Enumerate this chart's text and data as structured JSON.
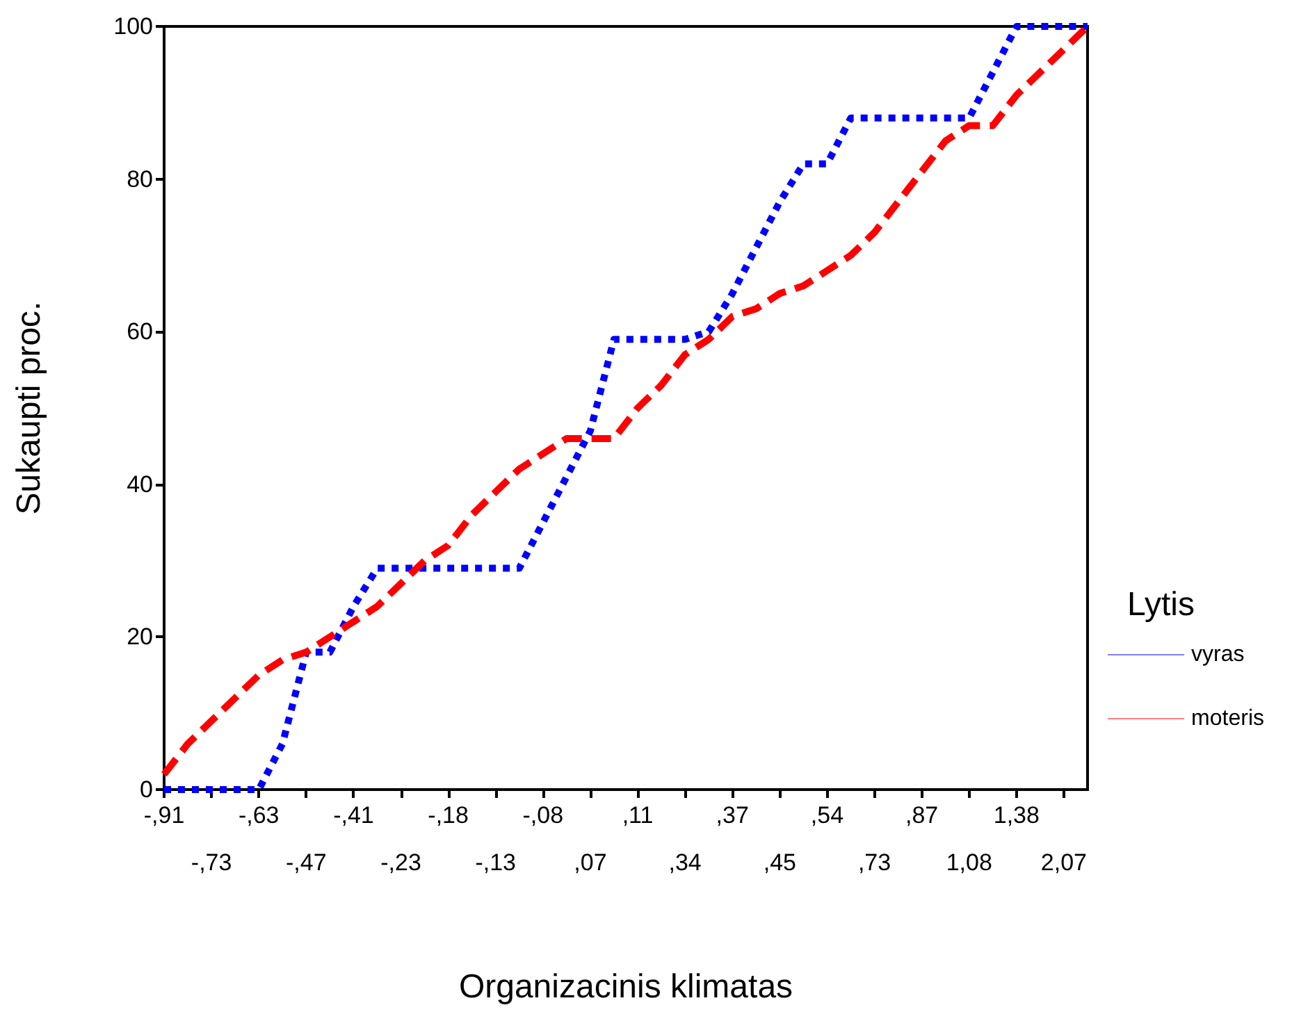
{
  "chart_data": {
    "type": "line",
    "xlabel": "Organizacinis klimatas",
    "ylabel": "Sukaupti proc.",
    "legend_title": "Lytis",
    "categories": [
      "-,91",
      null,
      "-,73",
      null,
      "-,63",
      null,
      "-,47",
      null,
      "-,41",
      null,
      "-,23",
      null,
      "-,18",
      null,
      "-,13",
      null,
      "-,08",
      null,
      ",07",
      null,
      ",11",
      null,
      ",34",
      null,
      ",37",
      null,
      ",45",
      null,
      ",54",
      null,
      ",73",
      null,
      ",87",
      null,
      "1,08",
      null,
      "1,38",
      null,
      "2,07",
      null
    ],
    "series": [
      {
        "name": "vyras",
        "color": "#0000ff",
        "line_style": "dotted",
        "values": [
          0,
          0,
          0,
          0,
          0,
          6,
          18,
          18,
          24,
          29,
          29,
          29,
          29,
          29,
          29,
          29,
          35,
          41,
          47,
          59,
          59,
          59,
          59,
          60,
          65,
          71,
          77,
          82,
          82,
          88,
          88,
          88,
          88,
          88,
          88,
          94,
          100,
          100,
          100,
          100
        ]
      },
      {
        "name": "moteris",
        "color": "#ff0000",
        "line_style": "dashed",
        "values": [
          2,
          6,
          9,
          12,
          15,
          17,
          18,
          20,
          22,
          24,
          27,
          30,
          32,
          36,
          39,
          42,
          44,
          46,
          46,
          46,
          50,
          53,
          57,
          59,
          62,
          63,
          65,
          66,
          68,
          70,
          73,
          77,
          81,
          85,
          87,
          87,
          91,
          94,
          97,
          100
        ]
      }
    ],
    "ylim": [
      0,
      100
    ],
    "yticks": [
      0,
      20,
      40,
      60,
      80,
      100
    ],
    "grid": false,
    "legend": "right",
    "marker": "none"
  }
}
